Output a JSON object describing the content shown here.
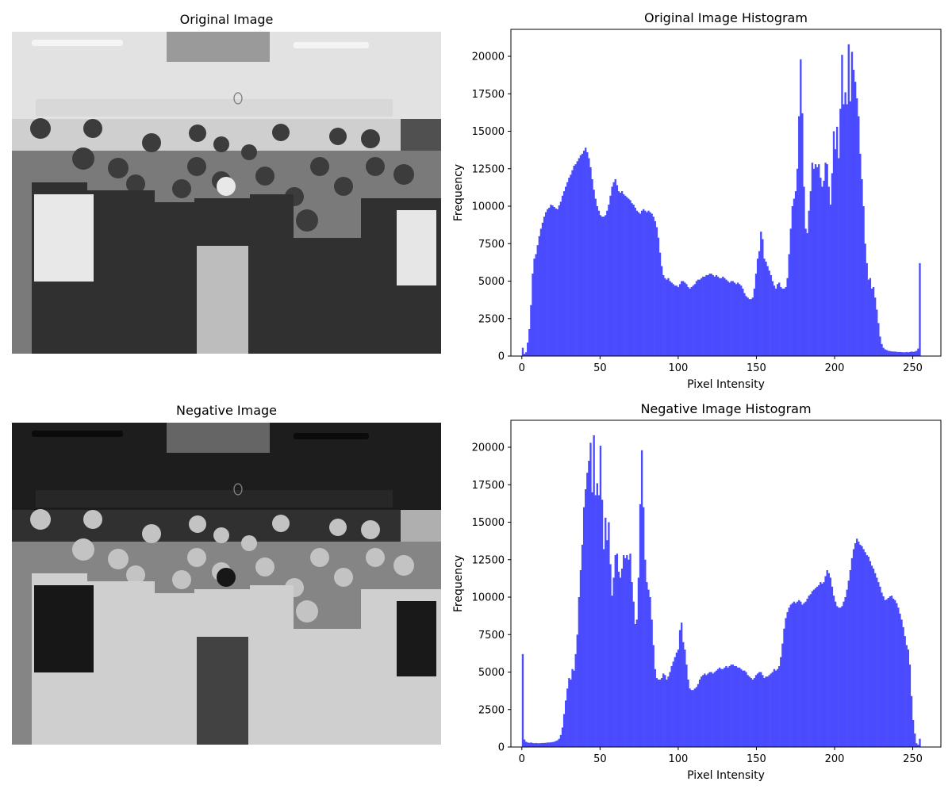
{
  "panels": {
    "original_image_title": "Original Image",
    "negative_image_title": "Negative Image"
  },
  "colors": {
    "bar": "#4a4aff",
    "axis": "#000000"
  },
  "chart_data": [
    {
      "type": "bar",
      "title": "Original Image Histogram",
      "xlabel": "Pixel Intensity",
      "ylabel": "Frequency",
      "xlim": [
        -7,
        268
      ],
      "ylim": [
        0,
        21800
      ],
      "xticks": [
        0,
        50,
        100,
        150,
        200,
        250
      ],
      "yticks": [
        0,
        2500,
        5000,
        7500,
        10000,
        12500,
        15000,
        17500,
        20000
      ],
      "bins": 256,
      "values": [
        550,
        150,
        250,
        900,
        1800,
        3400,
        5500,
        6500,
        6800,
        7400,
        8000,
        8500,
        8900,
        9300,
        9600,
        9800,
        9900,
        10100,
        10050,
        9950,
        9850,
        9800,
        10050,
        10300,
        10700,
        11000,
        11300,
        11600,
        11900,
        12100,
        12400,
        12700,
        12800,
        13000,
        13200,
        13400,
        13500,
        13700,
        13900,
        13600,
        13200,
        12600,
        11800,
        11100,
        10500,
        10000,
        9700,
        9400,
        9300,
        9300,
        9400,
        9700,
        10100,
        10700,
        11300,
        11600,
        11800,
        11400,
        11000,
        10900,
        11000,
        10800,
        10700,
        10600,
        10500,
        10400,
        10200,
        10100,
        9900,
        9700,
        9600,
        9500,
        9700,
        9800,
        9700,
        9600,
        9700,
        9600,
        9500,
        9300,
        9000,
        8600,
        7900,
        6900,
        6000,
        5400,
        5200,
        5100,
        5200,
        5000,
        4900,
        4800,
        4700,
        4700,
        4600,
        4800,
        5000,
        5000,
        4900,
        4800,
        4600,
        4500,
        4600,
        4700,
        4800,
        5000,
        5100,
        5100,
        5200,
        5300,
        5300,
        5400,
        5400,
        5500,
        5500,
        5400,
        5300,
        5400,
        5300,
        5200,
        5200,
        5300,
        5200,
        5100,
        5000,
        4900,
        5000,
        5000,
        4900,
        4800,
        4900,
        4800,
        4700,
        4500,
        4200,
        4000,
        3900,
        3800,
        3800,
        3900,
        4500,
        5500,
        6500,
        7000,
        8300,
        7800,
        6500,
        6300,
        6000,
        5700,
        5400,
        5000,
        4700,
        4500,
        4800,
        4900,
        4600,
        4500,
        4500,
        4600,
        5200,
        6800,
        8500,
        10000,
        10500,
        11000,
        12500,
        16000,
        19800,
        16200,
        11300,
        8500,
        8200,
        9700,
        11000,
        12900,
        12500,
        12800,
        12600,
        12800,
        11900,
        11300,
        11700,
        12900,
        12800,
        11300,
        10100,
        12200,
        15000,
        13800,
        15300,
        13200,
        16500,
        20100,
        16800,
        17600,
        16800,
        20800,
        17000,
        20300,
        19100,
        18300,
        17200,
        16000,
        13500,
        11800,
        10000,
        7500,
        6200,
        5100,
        5200,
        4500,
        4600,
        3900,
        3100,
        2200,
        1300,
        800,
        550,
        450,
        400,
        350,
        330,
        310,
        300,
        300,
        280,
        270,
        270,
        260,
        250,
        250,
        270,
        250,
        270,
        300,
        280,
        300,
        350,
        500,
        6200
      ]
    },
    {
      "type": "bar",
      "title": "Negative Image Histogram",
      "xlabel": "Pixel Intensity",
      "ylabel": "Frequency",
      "xlim": [
        -7,
        268
      ],
      "ylim": [
        0,
        21800
      ],
      "xticks": [
        0,
        50,
        100,
        150,
        200,
        250
      ],
      "yticks": [
        0,
        2500,
        5000,
        7500,
        10000,
        12500,
        15000,
        17500,
        20000
      ],
      "bins": 256,
      "values": [
        6200,
        500,
        350,
        300,
        280,
        300,
        270,
        250,
        270,
        250,
        250,
        260,
        270,
        270,
        280,
        300,
        300,
        310,
        330,
        350,
        400,
        450,
        550,
        800,
        1300,
        2200,
        3100,
        3900,
        4600,
        4500,
        5200,
        5100,
        6200,
        7500,
        10000,
        11800,
        13500,
        16000,
        17200,
        18300,
        19100,
        20300,
        17000,
        20800,
        16800,
        17600,
        16800,
        20100,
        16500,
        13200,
        15300,
        13800,
        15000,
        12200,
        10100,
        11300,
        12800,
        12900,
        11700,
        11300,
        11900,
        12800,
        12600,
        12800,
        12500,
        12900,
        11000,
        9700,
        8200,
        8500,
        11300,
        16200,
        19800,
        16000,
        12500,
        11000,
        10500,
        10000,
        8500,
        6800,
        5200,
        4600,
        4500,
        4500,
        4600,
        4900,
        4800,
        4500,
        4700,
        5000,
        5400,
        5700,
        6000,
        6300,
        6500,
        7800,
        8300,
        7000,
        6500,
        5500,
        4500,
        3900,
        3800,
        3800,
        3900,
        4000,
        4200,
        4500,
        4700,
        4800,
        4900,
        4800,
        4900,
        5000,
        5000,
        4900,
        5000,
        5100,
        5200,
        5300,
        5200,
        5200,
        5300,
        5400,
        5300,
        5400,
        5500,
        5500,
        5400,
        5400,
        5300,
        5300,
        5200,
        5100,
        5100,
        5000,
        4800,
        4700,
        4600,
        4500,
        4600,
        4800,
        4900,
        5000,
        5000,
        4800,
        4600,
        4700,
        4700,
        4800,
        4900,
        5000,
        5200,
        5100,
        5200,
        5400,
        6000,
        6900,
        7900,
        8600,
        9000,
        9300,
        9500,
        9600,
        9700,
        9600,
        9700,
        9800,
        9700,
        9500,
        9600,
        9700,
        9900,
        10100,
        10200,
        10400,
        10500,
        10600,
        10700,
        10800,
        11000,
        10900,
        11000,
        11400,
        11800,
        11600,
        11300,
        10700,
        10100,
        9700,
        9400,
        9300,
        9300,
        9400,
        9700,
        10000,
        10500,
        11100,
        11800,
        12600,
        13200,
        13600,
        13900,
        13700,
        13500,
        13400,
        13200,
        13000,
        12800,
        12700,
        12400,
        12100,
        11900,
        11600,
        11300,
        11000,
        10700,
        10300,
        10050,
        9800,
        9850,
        9950,
        10050,
        10100,
        9900,
        9800,
        9600,
        9300,
        8900,
        8500,
        8000,
        7400,
        6800,
        6500,
        5500,
        3400,
        1800,
        900,
        250,
        150,
        550
      ]
    }
  ]
}
